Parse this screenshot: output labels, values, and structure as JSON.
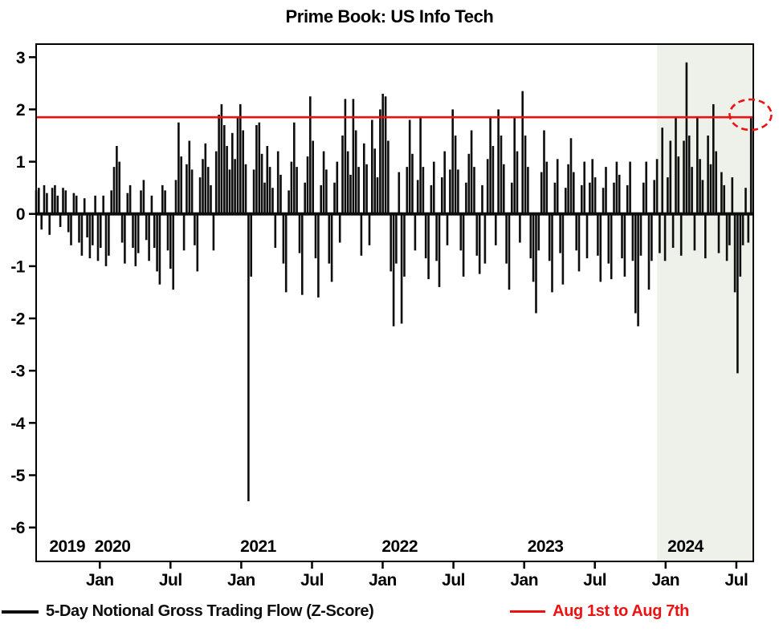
{
  "title": "Prime Book: US Info Tech",
  "colors": {
    "bar": "#0d0d0d",
    "reference": "#ee1111",
    "shade": "#eef1ea",
    "axis": "#000000"
  },
  "legend": [
    {
      "label": "5-Day Notional Gross Trading Flow (Z-Score)",
      "color": "#0d0d0d"
    },
    {
      "label": "Aug 1st to Aug 7th",
      "color": "#ee1111"
    }
  ],
  "chart_data": {
    "type": "bar",
    "title": "Prime Book: US Info Tech",
    "series_name": "5-Day Notional Gross Trading Flow (Z-Score)",
    "ylim": [
      -6,
      3
    ],
    "y_ticks": [
      3,
      2,
      1,
      0,
      -1,
      -2,
      -3,
      -4,
      -5,
      -6
    ],
    "grid": false,
    "legend_position": "bottom",
    "x_start": 2019.55,
    "x_end": 2024.62,
    "step_years": 0.019,
    "x_ticks": [
      {
        "t": 2020.0,
        "label": "Jan"
      },
      {
        "t": 2020.5,
        "label": "Jul"
      },
      {
        "t": 2021.0,
        "label": "Jan"
      },
      {
        "t": 2021.5,
        "label": "Jul"
      },
      {
        "t": 2022.0,
        "label": "Jan"
      },
      {
        "t": 2022.5,
        "label": "Jul"
      },
      {
        "t": 2023.0,
        "label": "Jan"
      },
      {
        "t": 2023.5,
        "label": "Jul"
      },
      {
        "t": 2024.0,
        "label": "Jan"
      },
      {
        "t": 2024.5,
        "label": "Jul"
      }
    ],
    "year_labels": [
      {
        "t": 2019.77,
        "label": "2019"
      },
      {
        "t": 2020.09,
        "label": "2020"
      },
      {
        "t": 2021.12,
        "label": "2021"
      },
      {
        "t": 2022.12,
        "label": "2022"
      },
      {
        "t": 2023.15,
        "label": "2023"
      },
      {
        "t": 2024.14,
        "label": "2024"
      }
    ],
    "reference_line": {
      "value": 1.85,
      "label": "Aug 1st to Aug 7th"
    },
    "shaded_region": {
      "from": 2023.94,
      "to": 2024.62
    },
    "highlight": {
      "t": 2024.6,
      "value": 1.9
    },
    "values": [
      0.45,
      0.5,
      -0.3,
      0.55,
      0.4,
      -0.4,
      0.5,
      0.55,
      0.35,
      -0.25,
      0.5,
      0.45,
      -0.35,
      -0.6,
      0.4,
      0.35,
      -0.55,
      -0.8,
      0.3,
      -0.45,
      -0.85,
      -0.6,
      0.35,
      -0.9,
      -0.65,
      0.35,
      -1.0,
      -0.8,
      0.45,
      0.9,
      1.3,
      1.0,
      -0.55,
      -0.95,
      0.4,
      0.55,
      -0.65,
      -1.0,
      -0.75,
      0.45,
      0.65,
      -0.5,
      -0.9,
      0.35,
      -0.65,
      -1.1,
      -1.35,
      0.55,
      0.45,
      -0.7,
      -1.05,
      -1.45,
      0.65,
      1.75,
      1.1,
      -0.7,
      0.95,
      1.4,
      0.85,
      -0.6,
      -1.1,
      0.7,
      1.05,
      1.35,
      0.9,
      0.55,
      -0.7,
      1.2,
      1.9,
      2.1,
      1.7,
      1.3,
      0.85,
      1.55,
      1.05,
      1.85,
      2.1,
      1.6,
      0.95,
      -5.5,
      -1.2,
      0.85,
      1.7,
      1.75,
      1.15,
      0.6,
      1.3,
      0.9,
      0.5,
      -0.65,
      1.2,
      0.75,
      -0.95,
      -1.5,
      0.45,
      1.0,
      1.75,
      0.9,
      -0.75,
      -1.55,
      0.6,
      1.1,
      2.25,
      1.4,
      -0.85,
      -1.6,
      0.55,
      1.2,
      0.85,
      -0.95,
      -1.3,
      0.6,
      1.0,
      -0.55,
      1.5,
      2.2,
      1.2,
      0.75,
      2.2,
      1.6,
      0.9,
      -0.8,
      1.35,
      0.95,
      -0.6,
      1.8,
      1.25,
      0.7,
      2.0,
      2.3,
      2.25,
      1.4,
      -1.1,
      -2.15,
      -0.95,
      0.8,
      -2.1,
      -1.2,
      0.9,
      1.8,
      1.15,
      -0.7,
      0.65,
      1.85,
      0.9,
      -0.85,
      -1.25,
      0.55,
      1.0,
      -0.9,
      -1.4,
      0.7,
      1.2,
      -0.6,
      0.85,
      2.0,
      1.5,
      0.85,
      -0.7,
      -1.2,
      0.6,
      1.15,
      1.6,
      0.9,
      -0.8,
      -1.15,
      0.55,
      -0.95,
      1.05,
      1.85,
      1.3,
      -0.6,
      2.0,
      1.5,
      0.95,
      -0.95,
      -1.45,
      0.6,
      1.85,
      1.2,
      -0.55,
      2.35,
      1.5,
      0.9,
      -0.85,
      -1.3,
      -1.9,
      -0.7,
      0.8,
      1.6,
      1.0,
      -0.9,
      -1.5,
      0.6,
      1.05,
      -0.75,
      -1.35,
      0.5,
      0.95,
      1.45,
      0.8,
      -0.7,
      -1.1,
      0.55,
      1.0,
      -0.85,
      0.6,
      1.05,
      0.7,
      -0.8,
      -1.3,
      0.5,
      0.9,
      -0.95,
      -1.25,
      0.6,
      1.0,
      0.75,
      -0.85,
      -1.2,
      0.55,
      1.0,
      -0.9,
      -1.9,
      -2.15,
      -0.8,
      0.6,
      1.0,
      -1.45,
      -0.9,
      0.65,
      1.05,
      -0.75,
      1.65,
      -0.9,
      0.7,
      1.4,
      -0.65,
      1.85,
      1.1,
      -0.8,
      1.4,
      2.9,
      1.5,
      0.9,
      -0.7,
      1.85,
      1.05,
      0.65,
      -0.85,
      1.5,
      0.95,
      2.1,
      1.2,
      -0.75,
      0.8,
      0.55,
      -0.9,
      -0.6,
      0.7,
      -1.5,
      -3.05,
      -1.2,
      -0.6,
      0.5,
      -0.55,
      1.85
    ]
  }
}
